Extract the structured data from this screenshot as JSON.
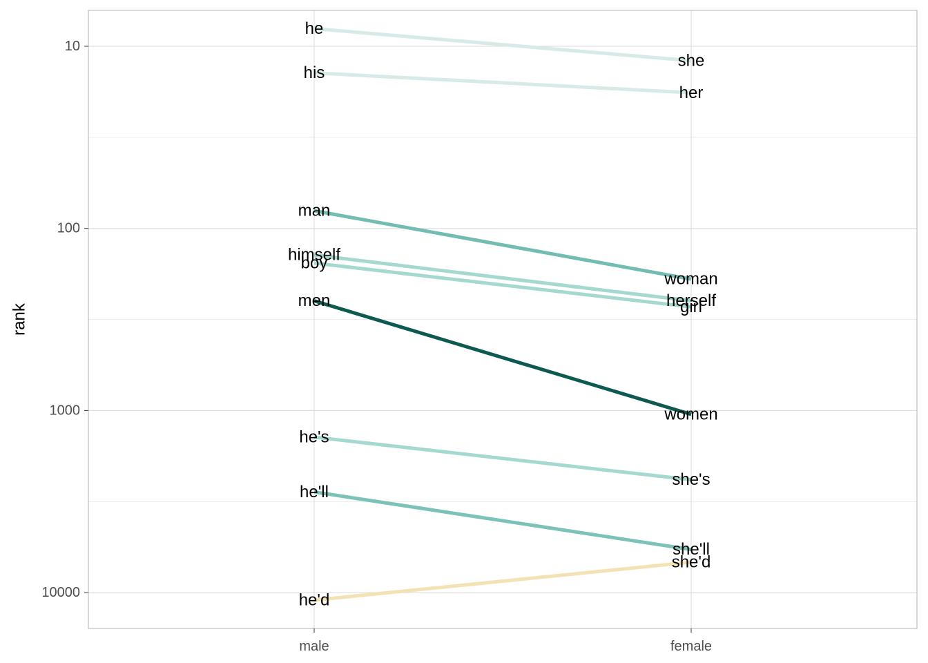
{
  "chart_data": {
    "type": "line",
    "title": "",
    "xlabel": "",
    "ylabel": "rank",
    "y_scale": "log10-reversed",
    "ylim": [
      6,
      15000
    ],
    "categories": [
      "male",
      "female"
    ],
    "y_ticks": [
      10,
      100,
      1000,
      10000
    ],
    "y_tick_labels": [
      "10",
      "100",
      "1000",
      "10000"
    ],
    "grid": true,
    "pairs": [
      {
        "male_word": "he",
        "male_rank": 8,
        "female_word": "she",
        "female_rank": 12,
        "color": "#d6ebe7"
      },
      {
        "male_word": "his",
        "male_rank": 14,
        "female_word": "her",
        "female_rank": 18,
        "color": "#d6ebe7"
      },
      {
        "male_word": "man",
        "male_rank": 80,
        "female_word": "woman",
        "female_rank": 190,
        "color": "#73bcb2"
      },
      {
        "male_word": "himself",
        "male_rank": 140,
        "female_word": "herself",
        "female_rank": 250,
        "color": "#a5d9cf"
      },
      {
        "male_word": "boy",
        "male_rank": 155,
        "female_word": "girl",
        "female_rank": 270,
        "color": "#a5d9cf"
      },
      {
        "male_word": "men",
        "male_rank": 250,
        "female_word": "women",
        "female_rank": 1050,
        "color": "#0d5a50"
      },
      {
        "male_word": "he's",
        "male_rank": 1400,
        "female_word": "she's",
        "female_rank": 2400,
        "color": "#a5d9cf"
      },
      {
        "male_word": "he'll",
        "male_rank": 2800,
        "female_word": "she'll",
        "female_rank": 5800,
        "color": "#7bc2b8"
      },
      {
        "male_word": "he'd",
        "male_rank": 11000,
        "female_word": "she'd",
        "female_rank": 6800,
        "color": "#f3e2b3"
      }
    ]
  },
  "colors": {
    "panel_border": "#b3b3b3",
    "grid_major": "#d9d9d9",
    "grid_minor": "#ebebeb"
  }
}
